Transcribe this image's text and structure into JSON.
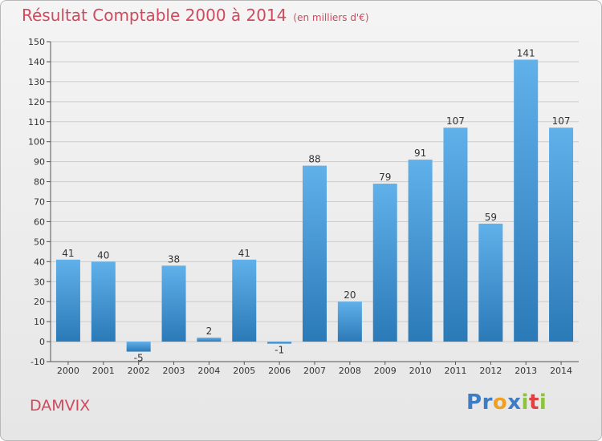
{
  "header": {
    "title": "Résultat Comptable 2000 à 2014",
    "unit": "(en milliers d'€)"
  },
  "commune": "DAMVIX",
  "logo": {
    "text": "Proxiti",
    "letters": [
      {
        "ch": "P",
        "color": "#3c7dc4"
      },
      {
        "ch": "r",
        "color": "#3c7dc4"
      },
      {
        "ch": "o",
        "color": "#f0a020"
      },
      {
        "ch": "x",
        "color": "#3c7dc4"
      },
      {
        "ch": "i",
        "color": "#8cc43c"
      },
      {
        "ch": "t",
        "color": "#e04040"
      },
      {
        "ch": "i",
        "color": "#8cc43c"
      }
    ]
  },
  "colors": {
    "bar_top": "#60b0ea",
    "bar_bottom": "#2b7ab8",
    "accent": "#d04a5e",
    "grid": "#cccccc",
    "text": "#333333"
  },
  "chart_data": {
    "type": "bar",
    "categories": [
      "2000",
      "2001",
      "2002",
      "2003",
      "2004",
      "2005",
      "2006",
      "2007",
      "2008",
      "2009",
      "2010",
      "2011",
      "2012",
      "2013",
      "2014"
    ],
    "values": [
      41,
      40,
      -5,
      38,
      2,
      41,
      -1,
      88,
      20,
      79,
      91,
      107,
      59,
      141,
      107
    ],
    "title": "Résultat Comptable 2000 à 2014",
    "ylim": [
      -10,
      150
    ],
    "yticks": [
      -10,
      0,
      10,
      20,
      30,
      40,
      50,
      60,
      70,
      80,
      90,
      100,
      110,
      120,
      130,
      140,
      150
    ],
    "grid": true,
    "legend": "none"
  }
}
